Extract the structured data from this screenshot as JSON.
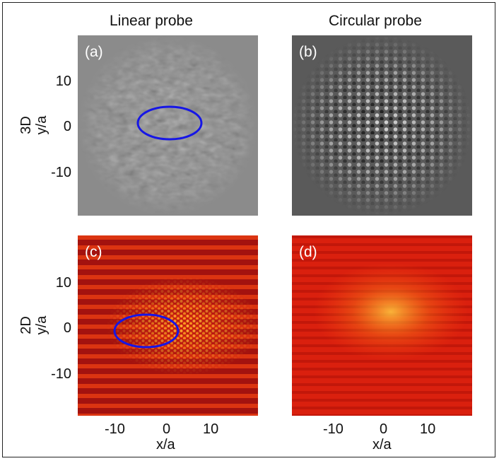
{
  "figure": {
    "column_titles": [
      "Linear probe",
      "Circular probe"
    ],
    "row_labels": [
      {
        "dimension": "3D",
        "axis": "y/a"
      },
      {
        "dimension": "2D",
        "axis": "y/a"
      }
    ],
    "x_axis_label": "x/a",
    "panels": [
      {
        "tag": "(a)",
        "colormap": "gray",
        "contour": "ellipse"
      },
      {
        "tag": "(b)",
        "colormap": "gray",
        "contour": "none"
      },
      {
        "tag": "(c)",
        "colormap": "hot",
        "contour": "ellipse"
      },
      {
        "tag": "(d)",
        "colormap": "hot",
        "contour": "none"
      }
    ],
    "y_ticks": [
      "10",
      "0",
      "-10"
    ],
    "x_ticks": [
      "-10",
      "0",
      "10"
    ],
    "contour_color": "#1616e6"
  },
  "chart_data": {
    "type": "heatmap",
    "panels_grid": "2x2",
    "xlabel": "x/a",
    "ylabel": "y/a",
    "xlim": [
      -19,
      19
    ],
    "ylim": [
      -19,
      19
    ],
    "x_ticks": [
      -10,
      0,
      10
    ],
    "y_ticks": [
      -10,
      0,
      10
    ],
    "ellipse_a": {
      "cx": 0.5,
      "cy": 0.6,
      "rx": 6.7,
      "ry": 3.5
    },
    "ellipse_c": {
      "cx": -4.1,
      "cy": -0.3,
      "rx": 6.7,
      "ry": 3.5
    }
  }
}
